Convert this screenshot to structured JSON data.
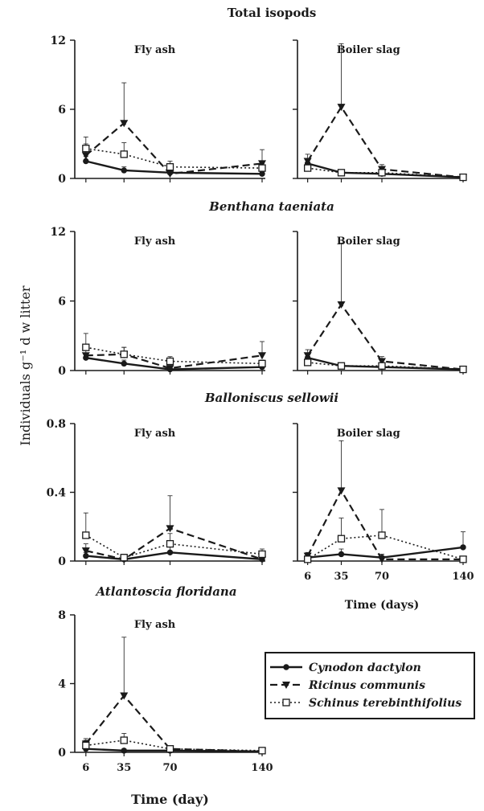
{
  "figure": {
    "ylabel": "Individuals g⁻¹ d w litter"
  },
  "legend": {
    "entries": [
      {
        "name": "Cynodon dactylon",
        "dash": "solid",
        "marker": "circle"
      },
      {
        "name": "Ricinus communis",
        "dash": "dashed",
        "marker": "triangle"
      },
      {
        "name": "Schinus terebinthifolius",
        "dash": "dotted",
        "marker": "square"
      }
    ]
  },
  "colors": {
    "ink": "#1a1a1a"
  },
  "chart_data": [
    {
      "type": "line",
      "group_title": "Total isopods",
      "panel_title": "Fly ash",
      "x": [
        6,
        35,
        70,
        140
      ],
      "ylim": [
        0,
        12
      ],
      "yticks": [
        "0",
        "6",
        "12"
      ],
      "xlim": [
        0,
        140
      ],
      "series": [
        {
          "name": "Cynodon dactylon",
          "values": [
            1.5,
            0.7,
            0.5,
            0.4
          ],
          "err": [
            0.4,
            0.3,
            0.2,
            0.2
          ]
        },
        {
          "name": "Ricinus communis",
          "values": [
            2.0,
            4.8,
            0.4,
            1.3
          ],
          "err": [
            1.0,
            3.5,
            0.3,
            1.2
          ]
        },
        {
          "name": "Schinus terebinthifolius",
          "values": [
            2.6,
            2.1,
            1.0,
            0.9
          ],
          "err": [
            1.0,
            1.0,
            0.5,
            0.4
          ]
        }
      ]
    },
    {
      "type": "line",
      "group_title": "Total isopods",
      "panel_title": "Boiler slag",
      "x": [
        6,
        35,
        70,
        140
      ],
      "ylim": [
        0,
        12
      ],
      "yticks": [
        "",
        "",
        ""
      ],
      "xlim": [
        0,
        140
      ],
      "series": [
        {
          "name": "Cynodon dactylon",
          "values": [
            1.3,
            0.5,
            0.4,
            0.1
          ],
          "err": [
            0.4,
            0.2,
            0.2,
            0.1
          ]
        },
        {
          "name": "Ricinus communis",
          "values": [
            1.5,
            6.2,
            0.8,
            0.1
          ],
          "err": [
            0.6,
            5.5,
            0.4,
            0.1
          ]
        },
        {
          "name": "Schinus terebinthifolius",
          "values": [
            0.9,
            0.5,
            0.5,
            0.1
          ],
          "err": [
            0.4,
            0.2,
            0.2,
            0.1
          ]
        }
      ]
    },
    {
      "type": "line",
      "group_title": "Benthana taeniata",
      "panel_title": "Fly ash",
      "x": [
        6,
        35,
        70,
        140
      ],
      "ylim": [
        0,
        12
      ],
      "yticks": [
        "0",
        "6",
        "12"
      ],
      "xlim": [
        0,
        140
      ],
      "series": [
        {
          "name": "Cynodon dactylon",
          "values": [
            1.1,
            0.6,
            0.1,
            0.3
          ],
          "err": [
            0.4,
            0.3,
            0.1,
            0.2
          ]
        },
        {
          "name": "Ricinus communis",
          "values": [
            1.3,
            1.4,
            0.2,
            1.3
          ],
          "err": [
            0.5,
            0.6,
            0.2,
            1.2
          ]
        },
        {
          "name": "Schinus terebinthifolius",
          "values": [
            2.0,
            1.4,
            0.8,
            0.6
          ],
          "err": [
            1.2,
            0.6,
            0.4,
            0.3
          ]
        }
      ]
    },
    {
      "type": "line",
      "group_title": "Benthana taeniata",
      "panel_title": "Boiler slag",
      "x": [
        6,
        35,
        70,
        140
      ],
      "ylim": [
        0,
        12
      ],
      "yticks": [
        "",
        "",
        ""
      ],
      "xlim": [
        0,
        140
      ],
      "series": [
        {
          "name": "Cynodon dactylon",
          "values": [
            1.1,
            0.4,
            0.3,
            0.1
          ],
          "err": [
            0.4,
            0.2,
            0.2,
            0.1
          ]
        },
        {
          "name": "Ricinus communis",
          "values": [
            1.3,
            5.7,
            0.8,
            0.1
          ],
          "err": [
            0.5,
            5.3,
            0.4,
            0.1
          ]
        },
        {
          "name": "Schinus terebinthifolius",
          "values": [
            0.7,
            0.4,
            0.4,
            0.1
          ],
          "err": [
            0.3,
            0.2,
            0.2,
            0.1
          ]
        }
      ]
    },
    {
      "type": "line",
      "group_title": "Balloniscus sellowii",
      "panel_title": "Fly ash",
      "x": [
        6,
        35,
        70,
        140
      ],
      "ylim": [
        0,
        0.8
      ],
      "yticks": [
        "0",
        "0.4",
        "0.8"
      ],
      "xlim": [
        0,
        140
      ],
      "series": [
        {
          "name": "Cynodon dactylon",
          "values": [
            0.03,
            0.01,
            0.05,
            0.01
          ],
          "err": [
            0.02,
            0.01,
            0.04,
            0.01
          ]
        },
        {
          "name": "Ricinus communis",
          "values": [
            0.06,
            0.01,
            0.19,
            0.01
          ],
          "err": [
            0.04,
            0.01,
            0.19,
            0.01
          ]
        },
        {
          "name": "Schinus terebinthifolius",
          "values": [
            0.15,
            0.02,
            0.1,
            0.04
          ],
          "err": [
            0.13,
            0.02,
            0.06,
            0.03
          ]
        }
      ]
    },
    {
      "type": "line",
      "group_title": "Balloniscus sellowii",
      "panel_title": "Boiler slag",
      "x": [
        6,
        35,
        70,
        140
      ],
      "xticks": [
        "6",
        "35",
        "70",
        "140"
      ],
      "xlabel": "Time (days)",
      "ylim": [
        0,
        0.8
      ],
      "yticks": [
        "",
        "",
        ""
      ],
      "xlim": [
        0,
        140
      ],
      "series": [
        {
          "name": "Cynodon dactylon",
          "values": [
            0.02,
            0.04,
            0.02,
            0.08
          ],
          "err": [
            0.02,
            0.03,
            0.02,
            0.09
          ]
        },
        {
          "name": "Ricinus communis",
          "values": [
            0.03,
            0.41,
            0.01,
            0.01
          ],
          "err": [
            0.02,
            0.29,
            0.01,
            0.01
          ]
        },
        {
          "name": "Schinus terebinthifolius",
          "values": [
            0.01,
            0.13,
            0.15,
            0.01
          ],
          "err": [
            0.01,
            0.12,
            0.15,
            0.01
          ]
        }
      ]
    },
    {
      "type": "line",
      "group_title": "Atlantoscia floridana",
      "panel_title": "Fly ash",
      "x": [
        6,
        35,
        70,
        140
      ],
      "xticks": [
        "6",
        "35",
        "70",
        "140"
      ],
      "xlabel": "Time (day)",
      "ylim": [
        0,
        8
      ],
      "yticks": [
        "0",
        "4",
        "8"
      ],
      "xlim": [
        0,
        140
      ],
      "series": [
        {
          "name": "Cynodon dactylon",
          "values": [
            0.2,
            0.1,
            0.1,
            0.05
          ],
          "err": [
            0.1,
            0.1,
            0.1,
            0.05
          ]
        },
        {
          "name": "Ricinus communis",
          "values": [
            0.5,
            3.3,
            0.2,
            0.05
          ],
          "err": [
            0.3,
            3.4,
            0.1,
            0.05
          ]
        },
        {
          "name": "Schinus terebinthifolius",
          "values": [
            0.4,
            0.7,
            0.2,
            0.1
          ],
          "err": [
            0.3,
            0.4,
            0.1,
            0.05
          ]
        }
      ]
    }
  ]
}
